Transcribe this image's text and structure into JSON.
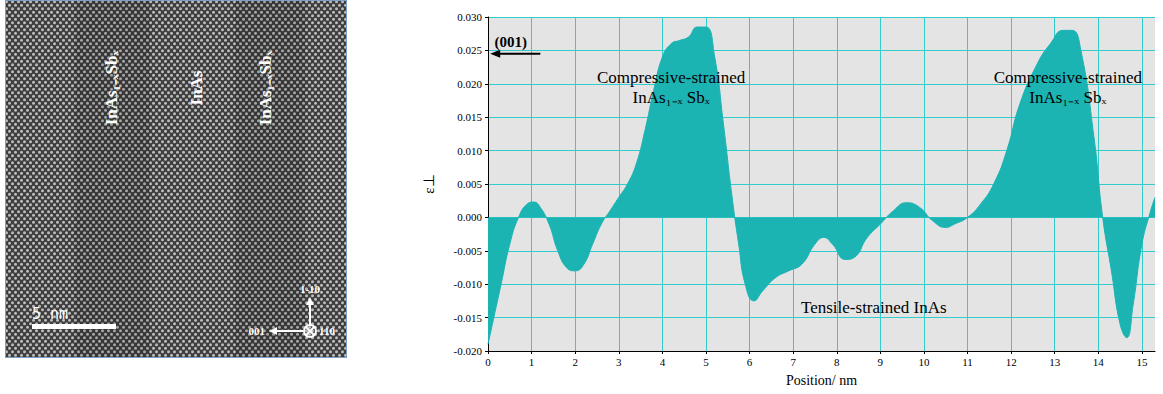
{
  "image_panel": {
    "layer_labels": [
      "InAs₁₋ₓSbₓ",
      "InAs",
      "InAs₁₋ₓSbₓ"
    ],
    "scale_bar": "5 nm",
    "directions": {
      "up": "1-10",
      "left": "001",
      "into": "110"
    }
  },
  "chart_data": {
    "type": "line",
    "x_label": "Position/ nm",
    "y_label": "ε⊥",
    "color": "#1cb3b3",
    "grid": true,
    "annotations": [
      "(001)",
      "Compressive-strained\nInAs₁₋ₓ Sbₓ",
      "Compressive-strained\nInAs₁₋ₓ Sbₓ",
      "Tensile-strained InAs"
    ],
    "x": [
      0,
      0.1,
      0.3,
      0.5,
      0.7,
      0.9,
      1.05,
      1.2,
      1.4,
      1.6,
      1.8,
      2.0,
      2.2,
      2.4,
      2.6,
      2.8,
      3.0,
      3.2,
      3.4,
      3.6,
      3.8,
      4.0,
      4.2,
      4.4,
      4.6,
      4.8,
      5.0,
      5.2,
      5.4,
      5.6,
      5.75,
      5.9,
      6.1,
      6.3,
      6.6,
      6.9,
      7.2,
      7.5,
      7.7,
      7.9,
      8.2,
      8.4,
      8.7,
      9.0,
      9.3,
      9.6,
      9.9,
      10.2,
      10.5,
      10.7,
      11.0,
      11.3,
      11.6,
      11.9,
      12.2,
      12.6,
      12.9,
      13.2,
      13.4,
      13.6,
      13.9,
      14.1,
      14.3,
      14.5,
      14.65,
      14.8,
      15.0,
      15.2,
      15.3
    ],
    "values": [
      -0.019,
      -0.016,
      -0.01,
      -0.004,
      0.0,
      0.002,
      0.0023,
      0.0015,
      -0.001,
      -0.005,
      -0.0075,
      -0.008,
      -0.007,
      -0.004,
      -0.001,
      0.001,
      0.003,
      0.005,
      0.008,
      0.013,
      0.019,
      0.024,
      0.026,
      0.0265,
      0.027,
      0.0285,
      0.0285,
      0.024,
      0.014,
      0.003,
      -0.004,
      -0.01,
      -0.0125,
      -0.011,
      -0.009,
      -0.008,
      -0.007,
      -0.004,
      -0.003,
      -0.004,
      -0.0063,
      -0.006,
      -0.003,
      -0.001,
      0.001,
      0.0022,
      0.0015,
      -0.0005,
      -0.0015,
      -0.001,
      0.0,
      0.002,
      0.005,
      0.01,
      0.017,
      0.023,
      0.026,
      0.028,
      0.028,
      0.025,
      0.012,
      0.0,
      -0.008,
      -0.016,
      -0.018,
      -0.013,
      -0.004,
      0.001,
      0.003
    ],
    "xlim": [
      0,
      15.3
    ],
    "xticks": [
      0,
      1,
      2,
      3,
      4,
      5,
      6,
      7,
      8,
      9,
      10,
      11,
      12,
      13,
      14,
      15
    ],
    "ylim": [
      -0.02,
      0.03
    ],
    "yticks": [
      {
        "value": -0.02,
        "label": "-0.020"
      },
      {
        "value": -0.015,
        "label": "-0.015"
      },
      {
        "value": -0.01,
        "label": "-0.010"
      },
      {
        "value": -0.005,
        "label": "-0.005"
      },
      {
        "value": 0,
        "label": "0.000"
      },
      {
        "value": 0.005,
        "label": "0.005"
      },
      {
        "value": 0.01,
        "label": "0.010"
      },
      {
        "value": 0.015,
        "label": "0.015"
      },
      {
        "value": 0.02,
        "label": "0.020"
      },
      {
        "value": 0.025,
        "label": "0.025"
      },
      {
        "value": 0.03,
        "label": "0.030"
      }
    ]
  }
}
